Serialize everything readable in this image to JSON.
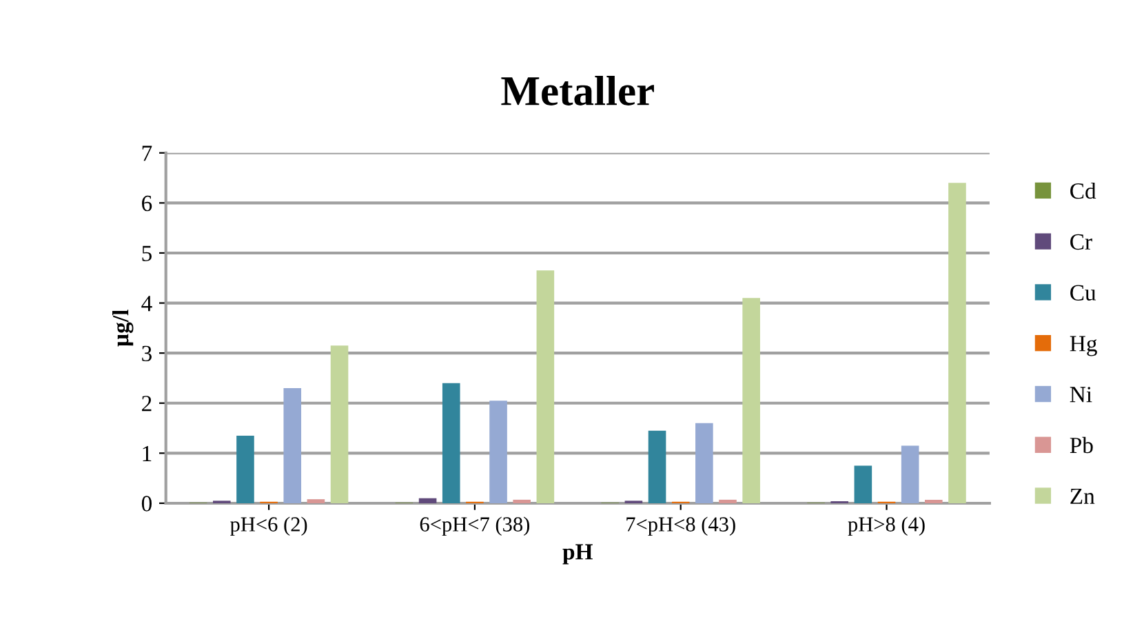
{
  "chart_data": {
    "type": "bar",
    "title": "Metaller",
    "xlabel": "pH",
    "ylabel": "µg/l",
    "categories": [
      "pH<6 (2)",
      "6<pH<7 (38)",
      "7<pH<8 (43)",
      "pH>8 (4)"
    ],
    "series": [
      {
        "name": "Cd",
        "color": "#77933c",
        "values": [
          0.01,
          0.01,
          0.01,
          0.01
        ]
      },
      {
        "name": "Cr",
        "color": "#604a7b",
        "values": [
          0.05,
          0.1,
          0.05,
          0.04
        ]
      },
      {
        "name": "Cu",
        "color": "#31859c",
        "values": [
          1.35,
          2.4,
          1.45,
          0.75
        ]
      },
      {
        "name": "Hg",
        "color": "#e46c0a",
        "values": [
          0.03,
          0.03,
          0.03,
          0.03
        ]
      },
      {
        "name": "Ni",
        "color": "#95a9d3",
        "values": [
          2.3,
          2.05,
          1.6,
          1.15
        ]
      },
      {
        "name": "Pb",
        "color": "#d99694",
        "values": [
          0.08,
          0.07,
          0.07,
          0.07
        ]
      },
      {
        "name": "Zn",
        "color": "#c3d69b",
        "values": [
          3.15,
          4.65,
          4.1,
          6.4
        ]
      }
    ],
    "ylim": [
      0,
      7
    ],
    "yticks": [
      0,
      1,
      2,
      3,
      4,
      5,
      6,
      7
    ],
    "grid": "y",
    "legend": "right"
  }
}
